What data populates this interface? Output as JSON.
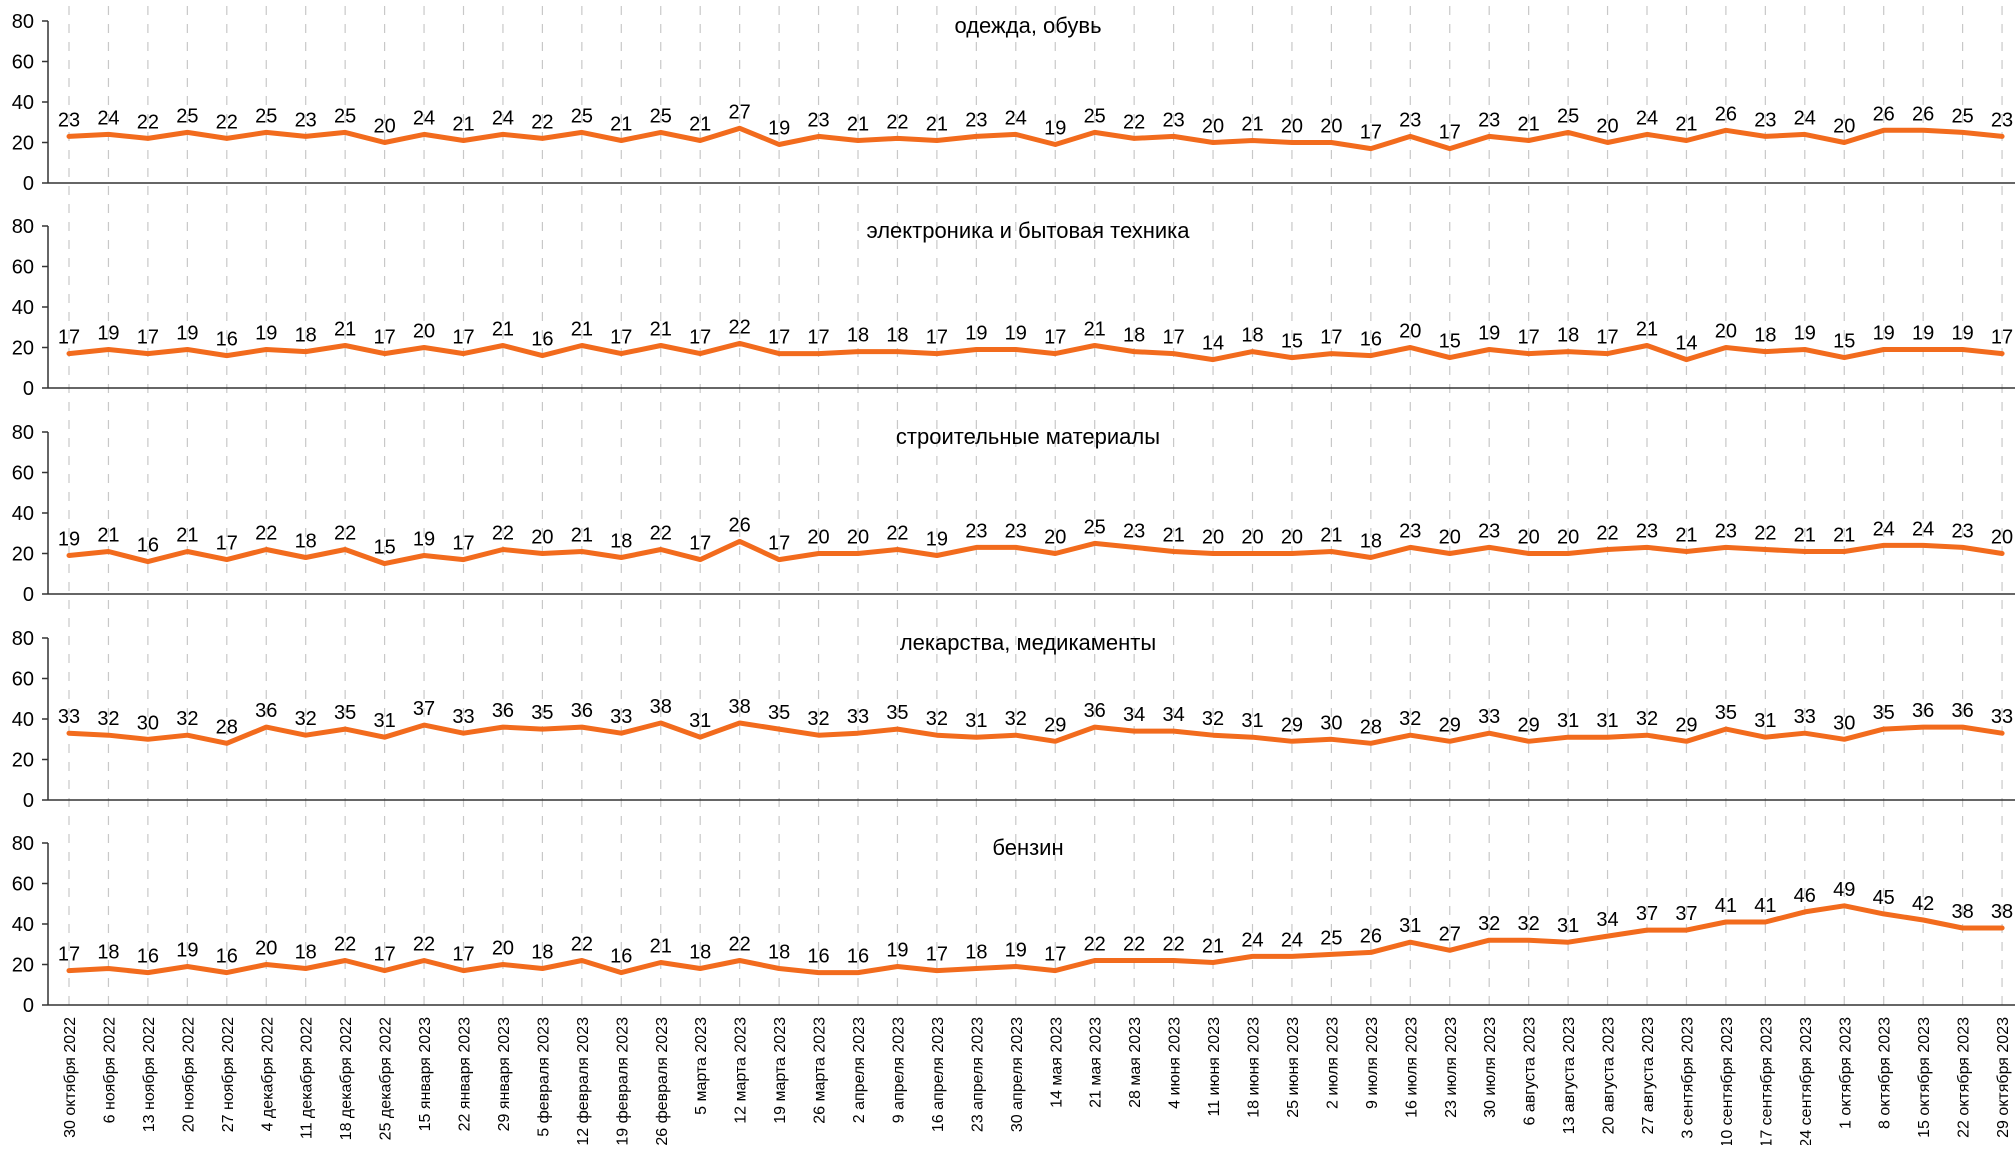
{
  "chart_data": {
    "type": "line",
    "line_color": "#F26B1D",
    "grid": "vertical-dashed",
    "ylim": [
      0,
      80
    ],
    "yticks": [
      0,
      20,
      40,
      60,
      80
    ],
    "x": [
      "30 октября 2022",
      "6 ноября 2022",
      "13 ноября 2022",
      "20 ноября 2022",
      "27 ноября 2022",
      "4 декабря 2022",
      "11 декабря 2022",
      "18 декабря 2022",
      "25 декабря 2022",
      "15 января 2023",
      "22 января 2023",
      "29 января 2023",
      "5 февраля 2023",
      "12 февраля 2023",
      "19 февраля 2023",
      "26 февраля 2023",
      "5 марта 2023",
      "12 марта 2023",
      "19 марта 2023",
      "26 марта 2023",
      "2 апреля 2023",
      "9 апреля 2023",
      "16 апреля 2023",
      "23 апреля 2023",
      "30 апреля 2023",
      "14 мая 2023",
      "21 мая 2023",
      "28 мая 2023",
      "4 июня 2023",
      "11 июня 2023",
      "18 июня 2023",
      "25 июня 2023",
      "2 июля 2023",
      "9 июля 2023",
      "16 июля 2023",
      "23 июля 2023",
      "30 июля 2023",
      "6 августа 2023",
      "13 августа 2023",
      "20 августа 2023",
      "27 августа 2023",
      "3 сентября 2023",
      "10 сентября 2023",
      "17 сентября 2023",
      "24 сентября 2023",
      "1 октября 2023",
      "8 октября 2023",
      "15 октября 2023",
      "22 октября 2023",
      "29 октября 2023"
    ],
    "series": [
      {
        "name": "одежда, обувь",
        "values": [
          23,
          24,
          22,
          25,
          22,
          25,
          23,
          25,
          20,
          24,
          21,
          24,
          22,
          25,
          21,
          25,
          21,
          27,
          19,
          23,
          21,
          22,
          21,
          23,
          24,
          19,
          25,
          22,
          23,
          20,
          21,
          20,
          20,
          17,
          23,
          17,
          23,
          21,
          25,
          20,
          24,
          21,
          26,
          23,
          24,
          20,
          26,
          26,
          25,
          23
        ]
      },
      {
        "name": "электроника и бытовая техника",
        "values": [
          17,
          19,
          17,
          19,
          16,
          19,
          18,
          21,
          17,
          20,
          17,
          21,
          16,
          21,
          17,
          21,
          17,
          22,
          17,
          17,
          18,
          18,
          17,
          19,
          19,
          17,
          21,
          18,
          17,
          14,
          18,
          15,
          17,
          16,
          20,
          15,
          19,
          17,
          18,
          17,
          21,
          14,
          20,
          18,
          19,
          15,
          19,
          19,
          19,
          17
        ]
      },
      {
        "name": "строительные материалы",
        "values": [
          19,
          21,
          16,
          21,
          17,
          22,
          18,
          22,
          15,
          19,
          17,
          22,
          20,
          21,
          18,
          22,
          17,
          26,
          17,
          20,
          20,
          22,
          19,
          23,
          23,
          20,
          25,
          23,
          21,
          20,
          20,
          20,
          21,
          18,
          23,
          20,
          23,
          20,
          20,
          22,
          23,
          21,
          23,
          22,
          21,
          21,
          24,
          24,
          23,
          20
        ]
      },
      {
        "name": "лекарства, медикаменты",
        "values": [
          33,
          32,
          30,
          32,
          28,
          36,
          32,
          35,
          31,
          37,
          33,
          36,
          35,
          36,
          33,
          38,
          31,
          38,
          35,
          32,
          33,
          35,
          32,
          31,
          32,
          29,
          36,
          34,
          34,
          32,
          31,
          29,
          30,
          28,
          32,
          29,
          33,
          29,
          31,
          31,
          32,
          29,
          35,
          31,
          33,
          30,
          35,
          36,
          36,
          33
        ]
      },
      {
        "name": "бензин",
        "values": [
          17,
          18,
          16,
          19,
          16,
          20,
          18,
          22,
          17,
          22,
          17,
          20,
          18,
          22,
          16,
          21,
          18,
          22,
          18,
          16,
          16,
          19,
          17,
          18,
          19,
          17,
          22,
          22,
          22,
          21,
          24,
          24,
          25,
          26,
          31,
          27,
          32,
          32,
          31,
          34,
          37,
          37,
          41,
          41,
          46,
          49,
          45,
          42,
          38,
          38
        ]
      }
    ]
  }
}
